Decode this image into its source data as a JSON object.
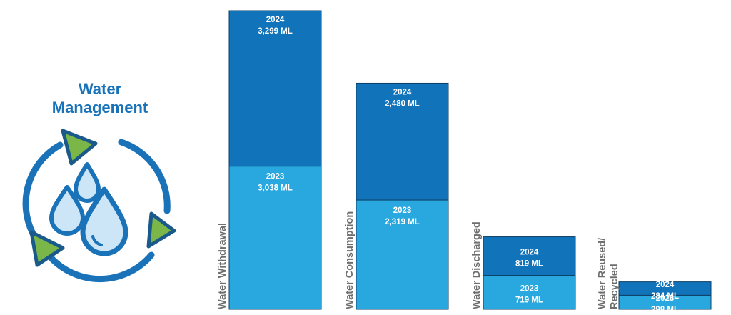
{
  "title": {
    "line1": "Water",
    "line2": "Management"
  },
  "icon": "water-cycle-droplets-icon",
  "colors": {
    "title": "#1a73b8",
    "year_2024": "#1173b9",
    "year_2023": "#29a8e0",
    "outline": "#1a5a8a",
    "arrow_accent": "#7ab648",
    "drop_fill": "#cce6f7",
    "category_label": "#6e6e6e"
  },
  "chart_data": {
    "type": "bar",
    "stacked": true,
    "unit": "ML",
    "categories": [
      {
        "label": [
          "Water Withdrawal"
        ],
        "y2023": "3,038 ML",
        "y2024": "3,299 ML"
      },
      {
        "label": [
          "Water Consumption"
        ],
        "y2023": "2,319 ML",
        "y2024": "2,480 ML"
      },
      {
        "label": [
          "Water Discharged"
        ],
        "y2023": "719 ML",
        "y2024": "819 ML"
      },
      {
        "label": [
          "Water Reused/",
          "Recycled"
        ],
        "y2023": "298 ML",
        "y2024": "284 ML"
      }
    ],
    "series": [
      {
        "name": "2023",
        "values": [
          3038,
          2319,
          719,
          298
        ]
      },
      {
        "name": "2024",
        "values": [
          3299,
          2480,
          819,
          284
        ]
      }
    ]
  }
}
